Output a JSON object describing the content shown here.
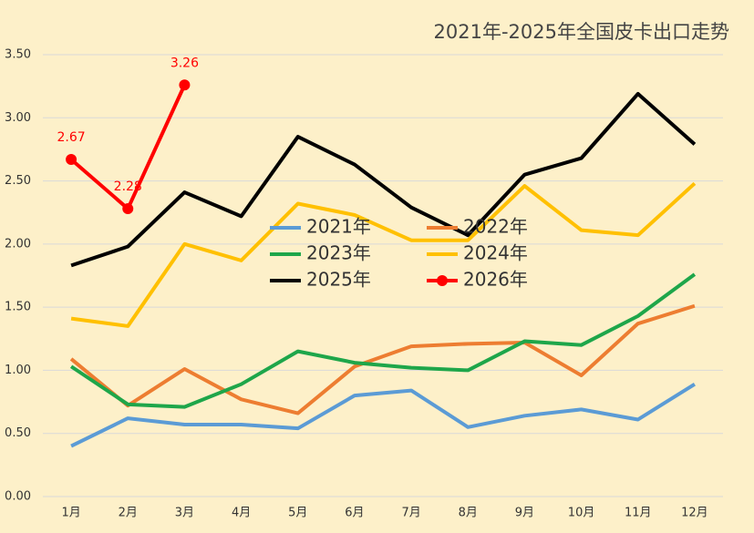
{
  "chart_data": {
    "type": "line",
    "title": "2021年-2025年全国皮卡出口走势",
    "categories": [
      "1月",
      "2月",
      "3月",
      "4月",
      "5月",
      "6月",
      "7月",
      "8月",
      "9月",
      "10月",
      "11月",
      "12月"
    ],
    "series": [
      {
        "name": "2021年",
        "color": "#5b9bd5",
        "values": [
          0.4,
          0.62,
          0.57,
          0.57,
          0.54,
          0.8,
          0.84,
          0.55,
          0.64,
          0.69,
          0.61,
          0.89
        ]
      },
      {
        "name": "2022年",
        "color": "#ed7d31",
        "values": [
          1.09,
          0.72,
          1.01,
          0.77,
          0.66,
          1.03,
          1.19,
          1.21,
          1.22,
          0.96,
          1.37,
          1.51
        ]
      },
      {
        "name": "2023年",
        "color": "#1ea64a",
        "values": [
          1.03,
          0.73,
          0.71,
          0.89,
          1.15,
          1.06,
          1.02,
          1.0,
          1.23,
          1.2,
          1.43,
          1.76
        ]
      },
      {
        "name": "2024年",
        "color": "#ffc000",
        "values": [
          1.41,
          1.35,
          2.0,
          1.87,
          2.32,
          2.23,
          2.03,
          2.03,
          2.46,
          2.11,
          2.07,
          2.48
        ]
      },
      {
        "name": "2025年",
        "color": "#000000",
        "values": [
          1.83,
          1.98,
          2.41,
          2.22,
          2.85,
          2.63,
          2.29,
          2.07,
          2.55,
          2.68,
          3.19,
          2.79
        ]
      },
      {
        "name": "2026年",
        "color": "#ff0000",
        "markers": true,
        "data_labels": true,
        "values": [
          2.67,
          2.28,
          3.26,
          null,
          null,
          null,
          null,
          null,
          null,
          null,
          null,
          null
        ]
      }
    ],
    "ylim": [
      0,
      3.5
    ],
    "yticks": [
      {
        "value": 0,
        "label": "0.00"
      },
      {
        "value": 0.5,
        "label": "0.50"
      },
      {
        "value": 1,
        "label": "1.00"
      },
      {
        "value": 1.5,
        "label": "1.50"
      },
      {
        "value": 2,
        "label": "2.00"
      },
      {
        "value": 2.5,
        "label": "2.50"
      },
      {
        "value": 3,
        "label": "3.00"
      },
      {
        "value": 3.5,
        "label": "3.50"
      }
    ],
    "grid": true,
    "legend": "center"
  }
}
